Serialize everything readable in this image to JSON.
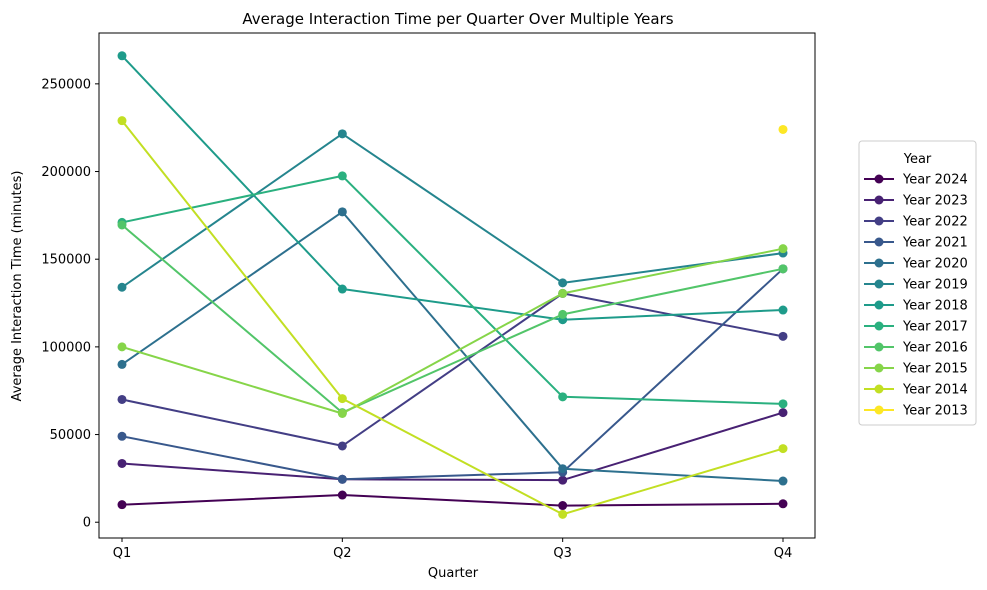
{
  "chart_data": {
    "type": "line",
    "title": "Average Interaction Time per Quarter Over Multiple Years",
    "xlabel": "Quarter",
    "ylabel": "Average Interaction Time (minutes)",
    "categories": [
      "Q1",
      "Q2",
      "Q3",
      "Q4"
    ],
    "ylim": [
      -9000,
      279000
    ],
    "yticks": [
      0,
      50000,
      100000,
      150000,
      200000,
      250000
    ],
    "grid": false,
    "legend": {
      "title": "Year",
      "placement": "right-outside"
    },
    "series": [
      {
        "name": "Year 2024",
        "color": "#440154",
        "values": [
          10000,
          15500,
          9500,
          10500
        ]
      },
      {
        "name": "Year 2023",
        "color": "#482173",
        "values": [
          33500,
          24500,
          24000,
          62500
        ]
      },
      {
        "name": "Year 2022",
        "color": "#433e85",
        "values": [
          70000,
          43500,
          130500,
          106000
        ]
      },
      {
        "name": "Year 2021",
        "color": "#38588c",
        "values": [
          49000,
          24500,
          28500,
          144500
        ]
      },
      {
        "name": "Year 2020",
        "color": "#2d708e",
        "values": [
          90000,
          177000,
          30500,
          23500
        ]
      },
      {
        "name": "Year 2019",
        "color": "#25858e",
        "values": [
          134000,
          221500,
          136500,
          153500
        ]
      },
      {
        "name": "Year 2018",
        "color": "#1e9b8a",
        "values": [
          266000,
          133000,
          115500,
          121000
        ]
      },
      {
        "name": "Year 2017",
        "color": "#2ab07f",
        "values": [
          171000,
          197500,
          71500,
          67500
        ]
      },
      {
        "name": "Year 2016",
        "color": "#52c569",
        "values": [
          169500,
          62500,
          118500,
          144500
        ]
      },
      {
        "name": "Year 2015",
        "color": "#86d549",
        "values": [
          100000,
          62000,
          130500,
          156000
        ]
      },
      {
        "name": "Year 2014",
        "color": "#c2df23",
        "values": [
          229000,
          70500,
          4500,
          42000
        ]
      },
      {
        "name": "Year 2013",
        "color": "#fde725",
        "values": [
          null,
          null,
          null,
          224000
        ]
      }
    ]
  }
}
